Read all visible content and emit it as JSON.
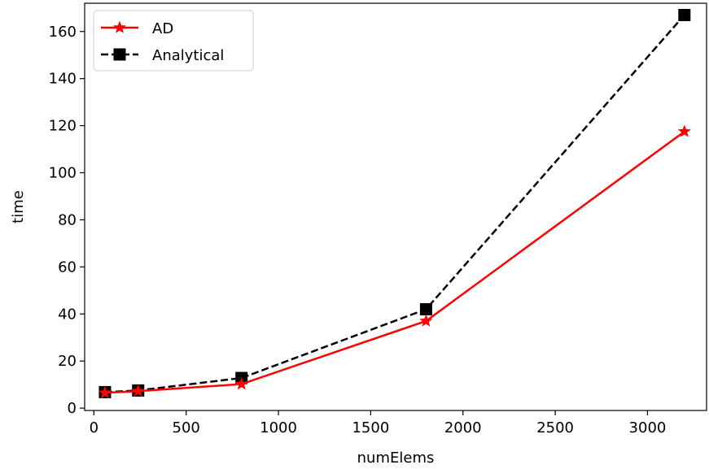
{
  "chart_data": {
    "type": "line",
    "title": "",
    "xlabel": "numElems",
    "ylabel": "time",
    "xlim": [
      -50,
      3320
    ],
    "ylim": [
      -1,
      172
    ],
    "xticks": [
      0,
      500,
      1000,
      1500,
      2000,
      2500,
      3000
    ],
    "yticks": [
      0,
      20,
      40,
      60,
      80,
      100,
      120,
      140,
      160
    ],
    "grid": false,
    "legend_position": "upper-left",
    "series": [
      {
        "name": "AD",
        "color": "#ff0000",
        "linestyle": "solid",
        "marker": "star",
        "x": [
          60,
          240,
          800,
          1800,
          3200
        ],
        "y": [
          6.5,
          7.2,
          10.2,
          37.0,
          117.5
        ]
      },
      {
        "name": "Analytical",
        "color": "#000000",
        "linestyle": "dashed",
        "marker": "square",
        "x": [
          60,
          240,
          800,
          1800,
          3200
        ],
        "y": [
          6.8,
          7.5,
          12.8,
          42.0,
          167.0
        ]
      }
    ]
  }
}
